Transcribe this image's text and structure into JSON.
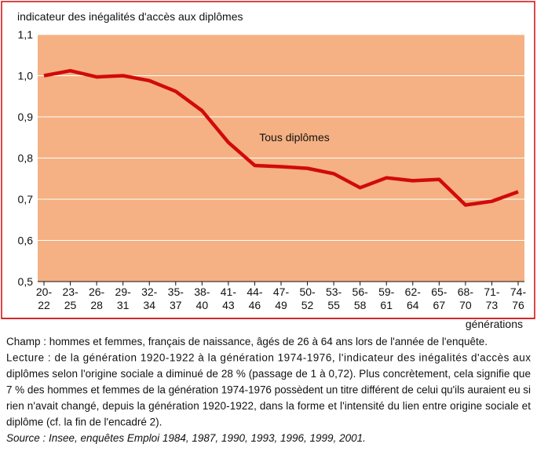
{
  "chart_data": {
    "type": "line",
    "ylabel": "indicateur des inégalités d'accès aux diplômes",
    "xlabel": "générations",
    "annotation": "Tous diplômes",
    "categories": [
      "20-22",
      "23-25",
      "26-28",
      "29-31",
      "32-34",
      "35-37",
      "38-40",
      "41-43",
      "44-46",
      "47-49",
      "50-52",
      "53-55",
      "56-58",
      "59-61",
      "62-64",
      "65-67",
      "68-70",
      "71-73",
      "74-76"
    ],
    "series": [
      {
        "name": "Tous diplômes",
        "color": "#d10a0a",
        "values": [
          1.0,
          1.012,
          0.997,
          1.0,
          0.988,
          0.962,
          0.915,
          0.838,
          0.782,
          0.779,
          0.775,
          0.762,
          0.728,
          0.752,
          0.745,
          0.748,
          0.686,
          0.695,
          0.718
        ]
      }
    ],
    "ylim": [
      0.5,
      1.1
    ],
    "yticks": [
      {
        "value": 0.5,
        "label": "0,5"
      },
      {
        "value": 0.6,
        "label": "0,6"
      },
      {
        "value": 0.7,
        "label": "0,7"
      },
      {
        "value": 0.8,
        "label": "0,8"
      },
      {
        "value": 0.9,
        "label": "0,9"
      },
      {
        "value": 1.0,
        "label": "1,0"
      },
      {
        "value": 1.1,
        "label": "1,1"
      }
    ],
    "background": "#f5b183",
    "grid": true
  },
  "notes": [
    "Champ : hommes et femmes, français de naissance, âgés de 26 à 64 ans lors de l'année de l'enquête.",
    "Lecture : de la génération 1920-1922 à la génération 1974-1976, l'indicateur des inégalités d'accès aux",
    "diplômes selon l'origine sociale a diminué de 28 % (passage de 1 à 0,72). Plus concrètement, cela signifie que",
    "7 % des hommes et femmes de la génération 1974-1976 possèdent un titre différent de celui qu'ils auraient eu si",
    "rien n'avait changé, depuis la génération 1920-1922, dans la forme et l'intensité du lien entre origine sociale et",
    "diplôme (cf. la fin de l'encadré 2).",
    "Source : Insee, enquêtes Emploi 1984, 1987, 1990, 1993, 1996, 1999, 2001."
  ]
}
